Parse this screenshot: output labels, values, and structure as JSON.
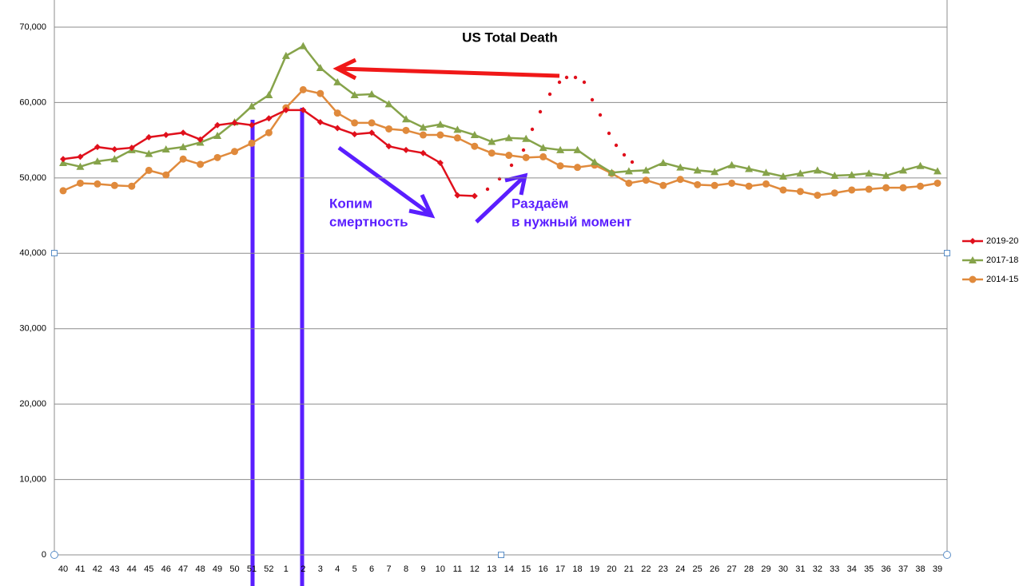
{
  "chart_data": {
    "type": "line",
    "title": "US Total Death",
    "categories": [
      "40",
      "41",
      "42",
      "43",
      "44",
      "45",
      "46",
      "47",
      "48",
      "49",
      "50",
      "51",
      "52",
      "1",
      "2",
      "3",
      "4",
      "5",
      "6",
      "7",
      "8",
      "9",
      "10",
      "11",
      "12",
      "13",
      "14",
      "15",
      "16",
      "17",
      "18",
      "19",
      "20",
      "21",
      "22",
      "23",
      "24",
      "25",
      "26",
      "27",
      "28",
      "29",
      "30",
      "31",
      "32",
      "33",
      "34",
      "35",
      "36",
      "37",
      "38",
      "39"
    ],
    "series": [
      {
        "name": "2019-20",
        "color": "#e0101c",
        "marker": "diamond",
        "values": [
          52500,
          52800,
          54100,
          53800,
          54000,
          55400,
          55700,
          56000,
          55100,
          57000,
          57300,
          57000,
          57900,
          59000,
          59000,
          57400,
          56600,
          55800,
          56000,
          54200,
          53700,
          53300,
          52000,
          47700,
          47600,
          null,
          null,
          null,
          null,
          null,
          null,
          null,
          null,
          null,
          null,
          null,
          null,
          null,
          null,
          null,
          null,
          null,
          null,
          null,
          null,
          null,
          null,
          null,
          null,
          null,
          null,
          null
        ]
      },
      {
        "name": "2017-18",
        "color": "#86a34a",
        "marker": "triangle",
        "values": [
          52000,
          51500,
          52200,
          52500,
          53700,
          53200,
          53800,
          54100,
          54700,
          55600,
          57400,
          59500,
          61000,
          66200,
          67500,
          64600,
          62700,
          61000,
          61100,
          59800,
          57800,
          56700,
          57100,
          56400,
          55700,
          54800,
          55300,
          55200,
          54000,
          53700,
          53700,
          52100,
          50700,
          50900,
          51000,
          52000,
          51400,
          51000,
          50800,
          51700,
          51200,
          50700,
          50200,
          50600,
          51000,
          50300,
          50400,
          50600,
          50300,
          51000,
          51600,
          50900
        ]
      },
      {
        "name": "2014-15",
        "color": "#e08a3c",
        "marker": "circle",
        "values": [
          48300,
          49300,
          49200,
          49000,
          48900,
          51000,
          50400,
          52500,
          51800,
          52700,
          53500,
          54600,
          56000,
          59300,
          61700,
          61200,
          58600,
          57300,
          57300,
          56500,
          56300,
          55700,
          55700,
          55300,
          54200,
          53300,
          53000,
          52700,
          52800,
          51600,
          51400,
          51700,
          50600,
          49300,
          49700,
          49000,
          49800,
          49100,
          49000,
          49300,
          48900,
          49200,
          48400,
          48200,
          47700,
          48000,
          48400,
          48500,
          48700,
          48700,
          48900,
          49300
        ]
      }
    ],
    "ylim": [
      0,
      70000
    ],
    "yticks": [
      0,
      {
        "value": 10000,
        "label": "10,000"
      },
      {
        "value": 20000,
        "label": "20,000"
      },
      {
        "value": 30000,
        "label": "30,000"
      },
      {
        "value": 40000,
        "label": "40,000"
      },
      {
        "value": 50000,
        "label": "50,000"
      },
      {
        "value": 60000,
        "label": "60,000"
      },
      {
        "value": 70000,
        "label": "70,000"
      }
    ],
    "grid": true,
    "legend": "right",
    "annotations": [
      [
        "Копим",
        "смертность"
      ],
      [
        "Раздаём",
        "в нужный момент"
      ]
    ]
  }
}
